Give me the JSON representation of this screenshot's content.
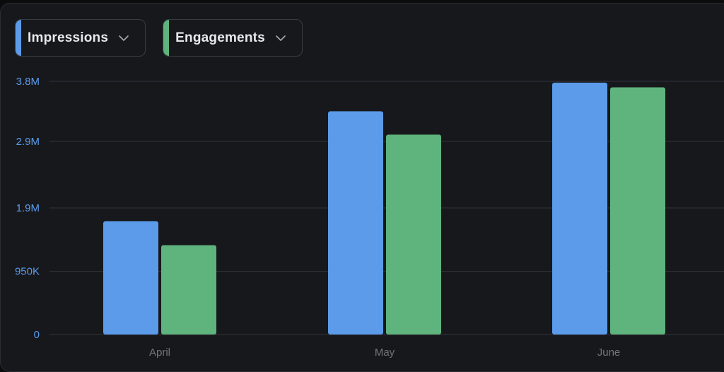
{
  "selectors": [
    {
      "label": "Impressions",
      "color": "#5b9bea",
      "icon": "chevron-down-icon"
    },
    {
      "label": "Engagements",
      "color": "#5fb47e",
      "icon": "chevron-down-icon"
    }
  ],
  "colors": {
    "background": "#17181c",
    "grid": "#33353b",
    "tick_label": "#5b9bea",
    "category_label": "#71767b"
  },
  "chart_data": {
    "type": "bar",
    "categories": [
      "April",
      "May",
      "June"
    ],
    "series": [
      {
        "name": "Impressions",
        "color": "#5b9bea",
        "values": [
          1700000,
          3350000,
          3780000
        ]
      },
      {
        "name": "Engagements",
        "color": "#5fb47e",
        "values": [
          1340000,
          3000000,
          3710000
        ]
      }
    ],
    "ylim": [
      0,
      3800000
    ],
    "yticks": [
      0,
      950000,
      1900000,
      2900000,
      3800000
    ],
    "ytick_labels": [
      "0",
      "950K",
      "1.9M",
      "2.9M",
      "3.8M"
    ],
    "grid": true,
    "title": "",
    "xlabel": "",
    "ylabel": ""
  }
}
